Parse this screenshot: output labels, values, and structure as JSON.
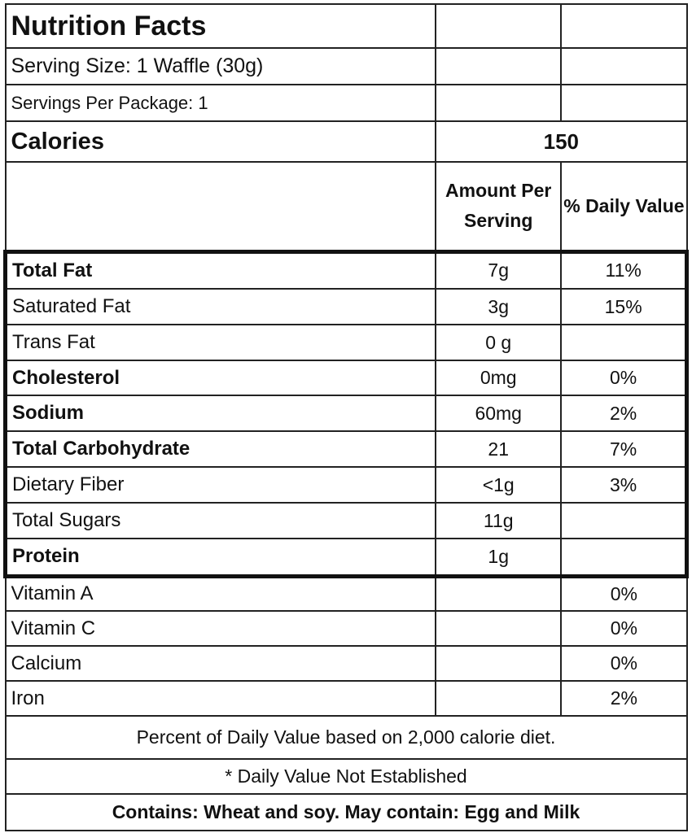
{
  "title": "Nutrition Facts",
  "serving_size": "Serving Size: 1 Waffle (30g)",
  "servings_per_package": "Servings Per Package: 1",
  "calories": {
    "label": "Calories",
    "value": "150"
  },
  "columns": {
    "amount": "Amount Per Serving",
    "daily": "% Daily Value"
  },
  "nutrients": [
    {
      "name": "Total Fat",
      "bold": true,
      "amount": "7g",
      "daily": "11%"
    },
    {
      "name": "Saturated Fat",
      "bold": false,
      "amount": "3g",
      "daily": "15%"
    },
    {
      "name": "Trans Fat",
      "bold": false,
      "amount": "0 g",
      "daily": ""
    },
    {
      "name": "Cholesterol",
      "bold": true,
      "amount": "0mg",
      "daily": "0%"
    },
    {
      "name": "Sodium",
      "bold": true,
      "amount": "60mg",
      "daily": "2%"
    },
    {
      "name": "Total Carbohydrate",
      "bold": true,
      "amount": "21",
      "daily": "7%"
    },
    {
      "name": "Dietary Fiber",
      "bold": false,
      "amount": "<1g",
      "daily": "3%"
    },
    {
      "name": "Total Sugars",
      "bold": false,
      "amount": "11g",
      "daily": ""
    },
    {
      "name": "Protein",
      "bold": true,
      "amount": "1g",
      "daily": ""
    }
  ],
  "vitamins": [
    {
      "name": "Vitamin A",
      "daily": "0%"
    },
    {
      "name": "Vitamin C",
      "daily": "0%"
    },
    {
      "name": "Calcium",
      "daily": "0%"
    },
    {
      "name": "Iron",
      "daily": "2%"
    }
  ],
  "footer": {
    "daily_value_note": "Percent of Daily Value based on 2,000 calorie diet.",
    "not_established": "* Daily Value Not Established",
    "allergens": "Contains:  Wheat and soy.  May contain:  Egg and Milk"
  }
}
